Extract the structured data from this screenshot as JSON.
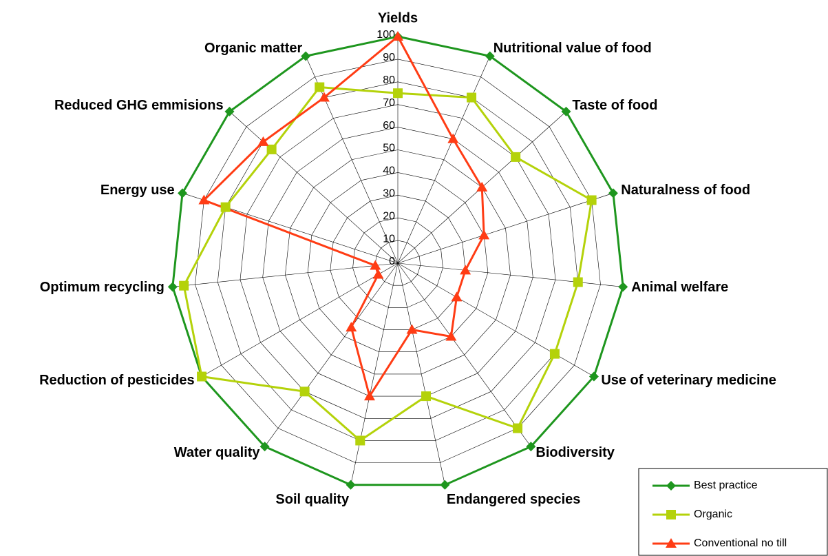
{
  "chart_data": {
    "type": "radar",
    "categories": [
      "Yields",
      "Nutritional value of food",
      "Taste of food",
      "Naturalness of food",
      "Animal welfare",
      "Use of veterinary medicine",
      "Biodiversity",
      "Endangered species",
      "Soil quality",
      "Water quality",
      "Reduction of pesticides",
      "Optimum recycling",
      "Energy use",
      "Reduced GHG emmisions",
      "Organic matter"
    ],
    "series": [
      {
        "name": "Best practice",
        "color": "#1e961e",
        "marker": "diamond",
        "values": [
          100,
          100,
          100,
          100,
          100,
          100,
          100,
          100,
          100,
          100,
          100,
          100,
          100,
          100,
          100
        ]
      },
      {
        "name": "Organic",
        "color": "#b4d20a",
        "marker": "square",
        "values": [
          75,
          80,
          70,
          90,
          80,
          80,
          90,
          60,
          80,
          70,
          100,
          95,
          80,
          75,
          85
        ]
      },
      {
        "name": "Conventional no till",
        "color": "#ff3c14",
        "marker": "triangle",
        "values": [
          100,
          60,
          50,
          40,
          30,
          30,
          40,
          30,
          60,
          35,
          10,
          10,
          90,
          80,
          80
        ]
      }
    ],
    "ylim": [
      0,
      100
    ],
    "yticks": [
      0,
      10,
      20,
      30,
      40,
      50,
      60,
      70,
      80,
      90,
      100
    ],
    "grid": true,
    "legend": "lower right"
  }
}
